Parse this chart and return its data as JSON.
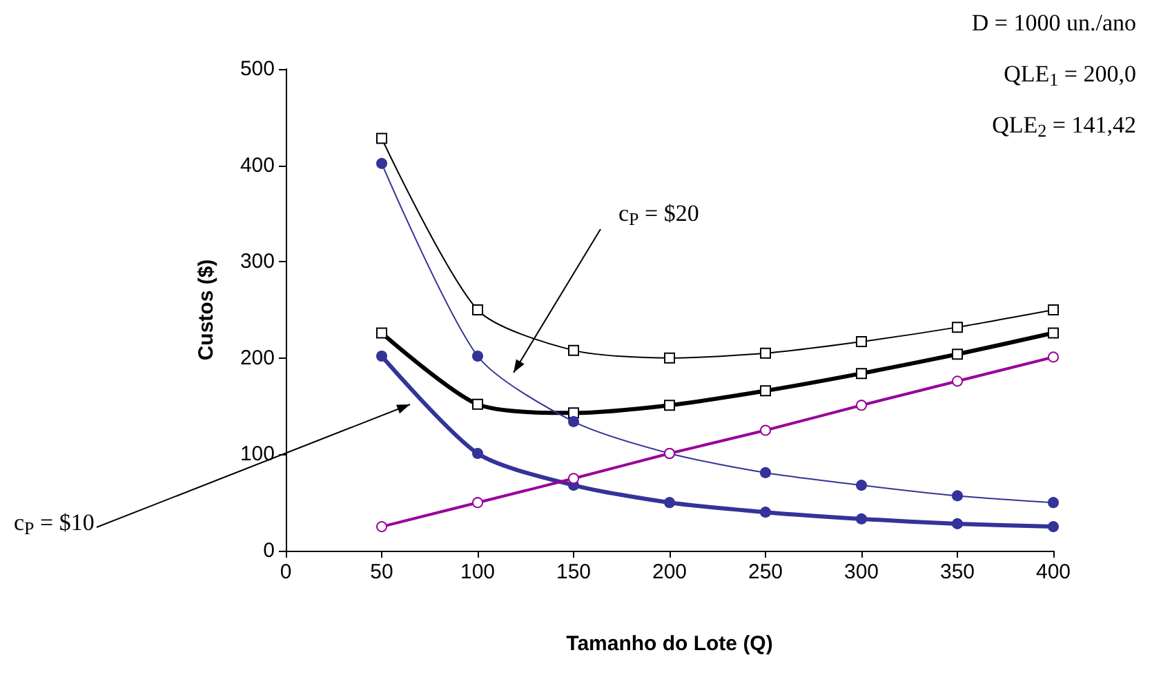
{
  "chart_data": {
    "type": "line",
    "xlabel": "Tamanho do Lote (Q)",
    "ylabel": "Custos ($)",
    "x": [
      50,
      100,
      150,
      200,
      250,
      300,
      350,
      400
    ],
    "series": [
      {
        "color": "#000000",
        "marker": "square",
        "values": [
          428,
          250,
          208,
          200,
          205,
          217,
          232,
          250
        ]
      },
      {
        "color": "#000000",
        "marker": "square",
        "values": [
          226,
          152,
          143,
          151,
          166,
          184,
          204,
          226
        ]
      },
      {
        "color": "#333399",
        "marker": "circle",
        "values": [
          402,
          202,
          134,
          101,
          81,
          68,
          57,
          50
        ]
      },
      {
        "color": "#333399",
        "marker": "circle",
        "values": [
          202,
          101,
          68,
          50,
          40,
          33,
          28,
          25
        ]
      },
      {
        "color": "#990099",
        "marker": "circle",
        "values": [
          25,
          50,
          75,
          101,
          125,
          151,
          176,
          201
        ]
      }
    ],
    "xlim": [
      0,
      400
    ],
    "xticks": [
      0,
      50,
      100,
      150,
      200,
      250,
      300,
      350,
      400
    ],
    "ylim": [
      0,
      500
    ],
    "yticks": [
      0,
      100,
      200,
      300,
      400,
      500
    ],
    "grid": false,
    "annotations": [
      "D = 1000 un./ano",
      "QLE$_{1}$ = 200,0",
      "QLE$_{2}$ = 141,42",
      "c$_{P}$ = $20",
      "c$_{P}$ = $10"
    ]
  }
}
